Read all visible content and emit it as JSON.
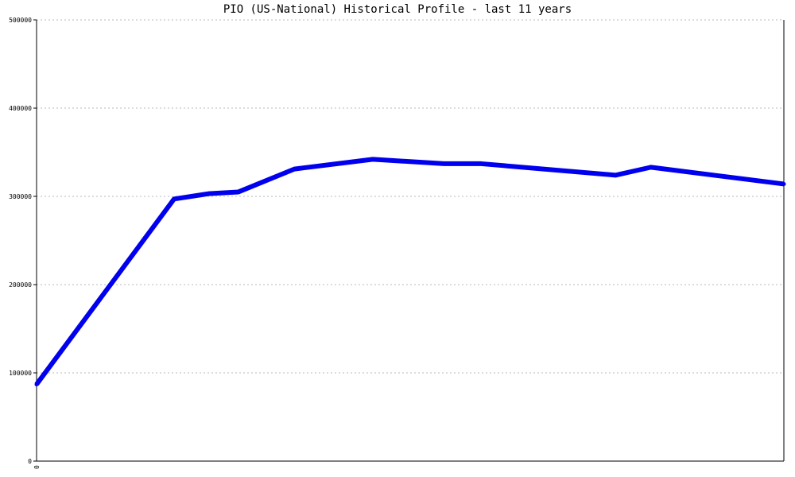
{
  "chart_data": {
    "type": "line",
    "title": "PIO (US-National) Historical Profile - last 11 years",
    "xlabel": "",
    "ylabel": "",
    "ylim": [
      0,
      500000
    ],
    "yticks": [
      "0",
      "100000",
      "200000",
      "300000",
      "400000",
      "500000"
    ],
    "xticks": [
      "0"
    ],
    "grid": true,
    "colors": {
      "line": "#0000ee",
      "grid": "#b8b8b8",
      "axis": "#000000"
    },
    "x": [
      0,
      0.184,
      0.23,
      0.27,
      0.345,
      0.45,
      0.545,
      0.595,
      0.775,
      0.822,
      1.0
    ],
    "series": [
      {
        "values": [
          87000,
          297000,
          303000,
          305000,
          331000,
          342000,
          337000,
          337000,
          324000,
          333000,
          314000
        ]
      }
    ]
  }
}
